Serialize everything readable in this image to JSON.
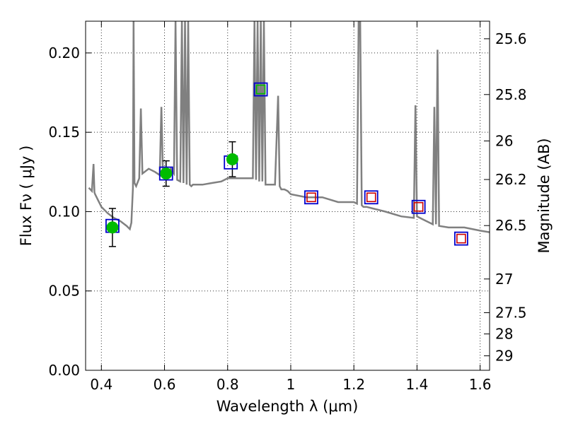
{
  "chart_data": {
    "type": "scatter",
    "xlabel": "Wavelength  λ (μm)",
    "ylabel": "Flux  Fν  ( μJy )",
    "ylabel_right": "Magnitude (AB)",
    "xlim": [
      0.35,
      1.63
    ],
    "ylim": [
      0.0,
      0.22
    ],
    "grid": true,
    "x_ticks": [
      {
        "value": 0.4,
        "label": "0.4"
      },
      {
        "value": 0.6,
        "label": "0.6"
      },
      {
        "value": 0.8,
        "label": "0.8"
      },
      {
        "value": 1.0,
        "label": "1"
      },
      {
        "value": 1.2,
        "label": "1.2"
      },
      {
        "value": 1.4,
        "label": "1.4"
      },
      {
        "value": 1.6,
        "label": "1.6"
      }
    ],
    "y_ticks": [
      {
        "value": 0.0,
        "label": "0.00"
      },
      {
        "value": 0.05,
        "label": "0.05"
      },
      {
        "value": 0.1,
        "label": "0.10"
      },
      {
        "value": 0.15,
        "label": "0.15"
      },
      {
        "value": 0.2,
        "label": "0.20"
      }
    ],
    "right_ticks": [
      {
        "value": 25.6,
        "label": "25.6"
      },
      {
        "value": 25.8,
        "label": "25.8"
      },
      {
        "value": 26.0,
        "label": "26"
      },
      {
        "value": 26.2,
        "label": "26.2"
      },
      {
        "value": 26.5,
        "label": "26.5"
      },
      {
        "value": 27.0,
        "label": "27"
      },
      {
        "value": 27.5,
        "label": "27.5"
      },
      {
        "value": 28.0,
        "label": "28"
      },
      {
        "value": 29.0,
        "label": "29"
      }
    ],
    "colors": {
      "spectrum": "#808080",
      "observed": "#00bb00",
      "model_box": "#0000cc",
      "model_upper_box": "#cc0000",
      "errorbar": "#000000"
    },
    "series": [
      {
        "kind": "spectrum",
        "x": [
          0.36,
          0.37,
          0.375,
          0.378,
          0.38,
          0.39,
          0.4,
          0.42,
          0.44,
          0.46,
          0.48,
          0.49,
          0.495,
          0.5,
          0.502,
          0.505,
          0.51,
          0.52,
          0.525,
          0.53,
          0.55,
          0.57,
          0.585,
          0.59,
          0.595,
          0.6,
          0.62,
          0.63,
          0.635,
          0.64,
          0.65,
          0.655,
          0.66,
          0.665,
          0.67,
          0.675,
          0.68,
          0.685,
          0.69,
          0.72,
          0.75,
          0.78,
          0.8,
          0.83,
          0.86,
          0.88,
          0.885,
          0.89,
          0.895,
          0.9,
          0.905,
          0.91,
          0.915,
          0.92,
          0.95,
          0.96,
          0.965,
          0.97,
          0.98,
          0.99,
          1.0,
          1.05,
          1.1,
          1.15,
          1.2,
          1.21,
          1.215,
          1.22,
          1.225,
          1.23,
          1.24,
          1.26,
          1.28,
          1.3,
          1.35,
          1.39,
          1.395,
          1.4,
          1.42,
          1.45,
          1.455,
          1.46,
          1.465,
          1.47,
          1.5,
          1.55,
          1.6,
          1.63
        ],
        "y": [
          0.115,
          0.113,
          0.13,
          0.112,
          0.111,
          0.107,
          0.103,
          0.099,
          0.096,
          0.094,
          0.091,
          0.089,
          0.093,
          0.115,
          0.22,
          0.118,
          0.116,
          0.121,
          0.165,
          0.124,
          0.127,
          0.125,
          0.123,
          0.166,
          0.124,
          0.122,
          0.127,
          0.124,
          0.22,
          0.12,
          0.119,
          0.22,
          0.118,
          0.22,
          0.117,
          0.22,
          0.117,
          0.116,
          0.117,
          0.117,
          0.118,
          0.119,
          0.121,
          0.121,
          0.121,
          0.121,
          0.22,
          0.12,
          0.22,
          0.119,
          0.22,
          0.119,
          0.22,
          0.117,
          0.117,
          0.173,
          0.116,
          0.114,
          0.114,
          0.113,
          0.111,
          0.109,
          0.109,
          0.106,
          0.106,
          0.105,
          0.22,
          0.22,
          0.104,
          0.103,
          0.103,
          0.102,
          0.101,
          0.1,
          0.097,
          0.096,
          0.167,
          0.097,
          0.095,
          0.092,
          0.166,
          0.092,
          0.202,
          0.091,
          0.09,
          0.09,
          0.088,
          0.087
        ]
      },
      {
        "name": "",
        "kind": "observed",
        "x": [
          0.435,
          0.605,
          0.815
        ],
        "y": [
          0.09,
          0.124,
          0.133
        ],
        "yerr": [
          0.012,
          0.008,
          0.011
        ]
      },
      {
        "name": "",
        "kind": "model_blue_square",
        "x": [
          0.435,
          0.605,
          0.81,
          0.905,
          1.065,
          1.255,
          1.405,
          1.54
        ],
        "y": [
          0.091,
          0.124,
          0.131,
          0.177,
          0.109,
          0.109,
          0.103,
          0.083
        ]
      },
      {
        "name": "",
        "kind": "model_red_square",
        "x": [
          1.065,
          1.255,
          1.405,
          1.54
        ],
        "y": [
          0.109,
          0.109,
          0.103,
          0.083
        ]
      },
      {
        "name": "",
        "kind": "model_green_square",
        "x": [
          0.905
        ],
        "y": [
          0.177
        ]
      }
    ]
  }
}
